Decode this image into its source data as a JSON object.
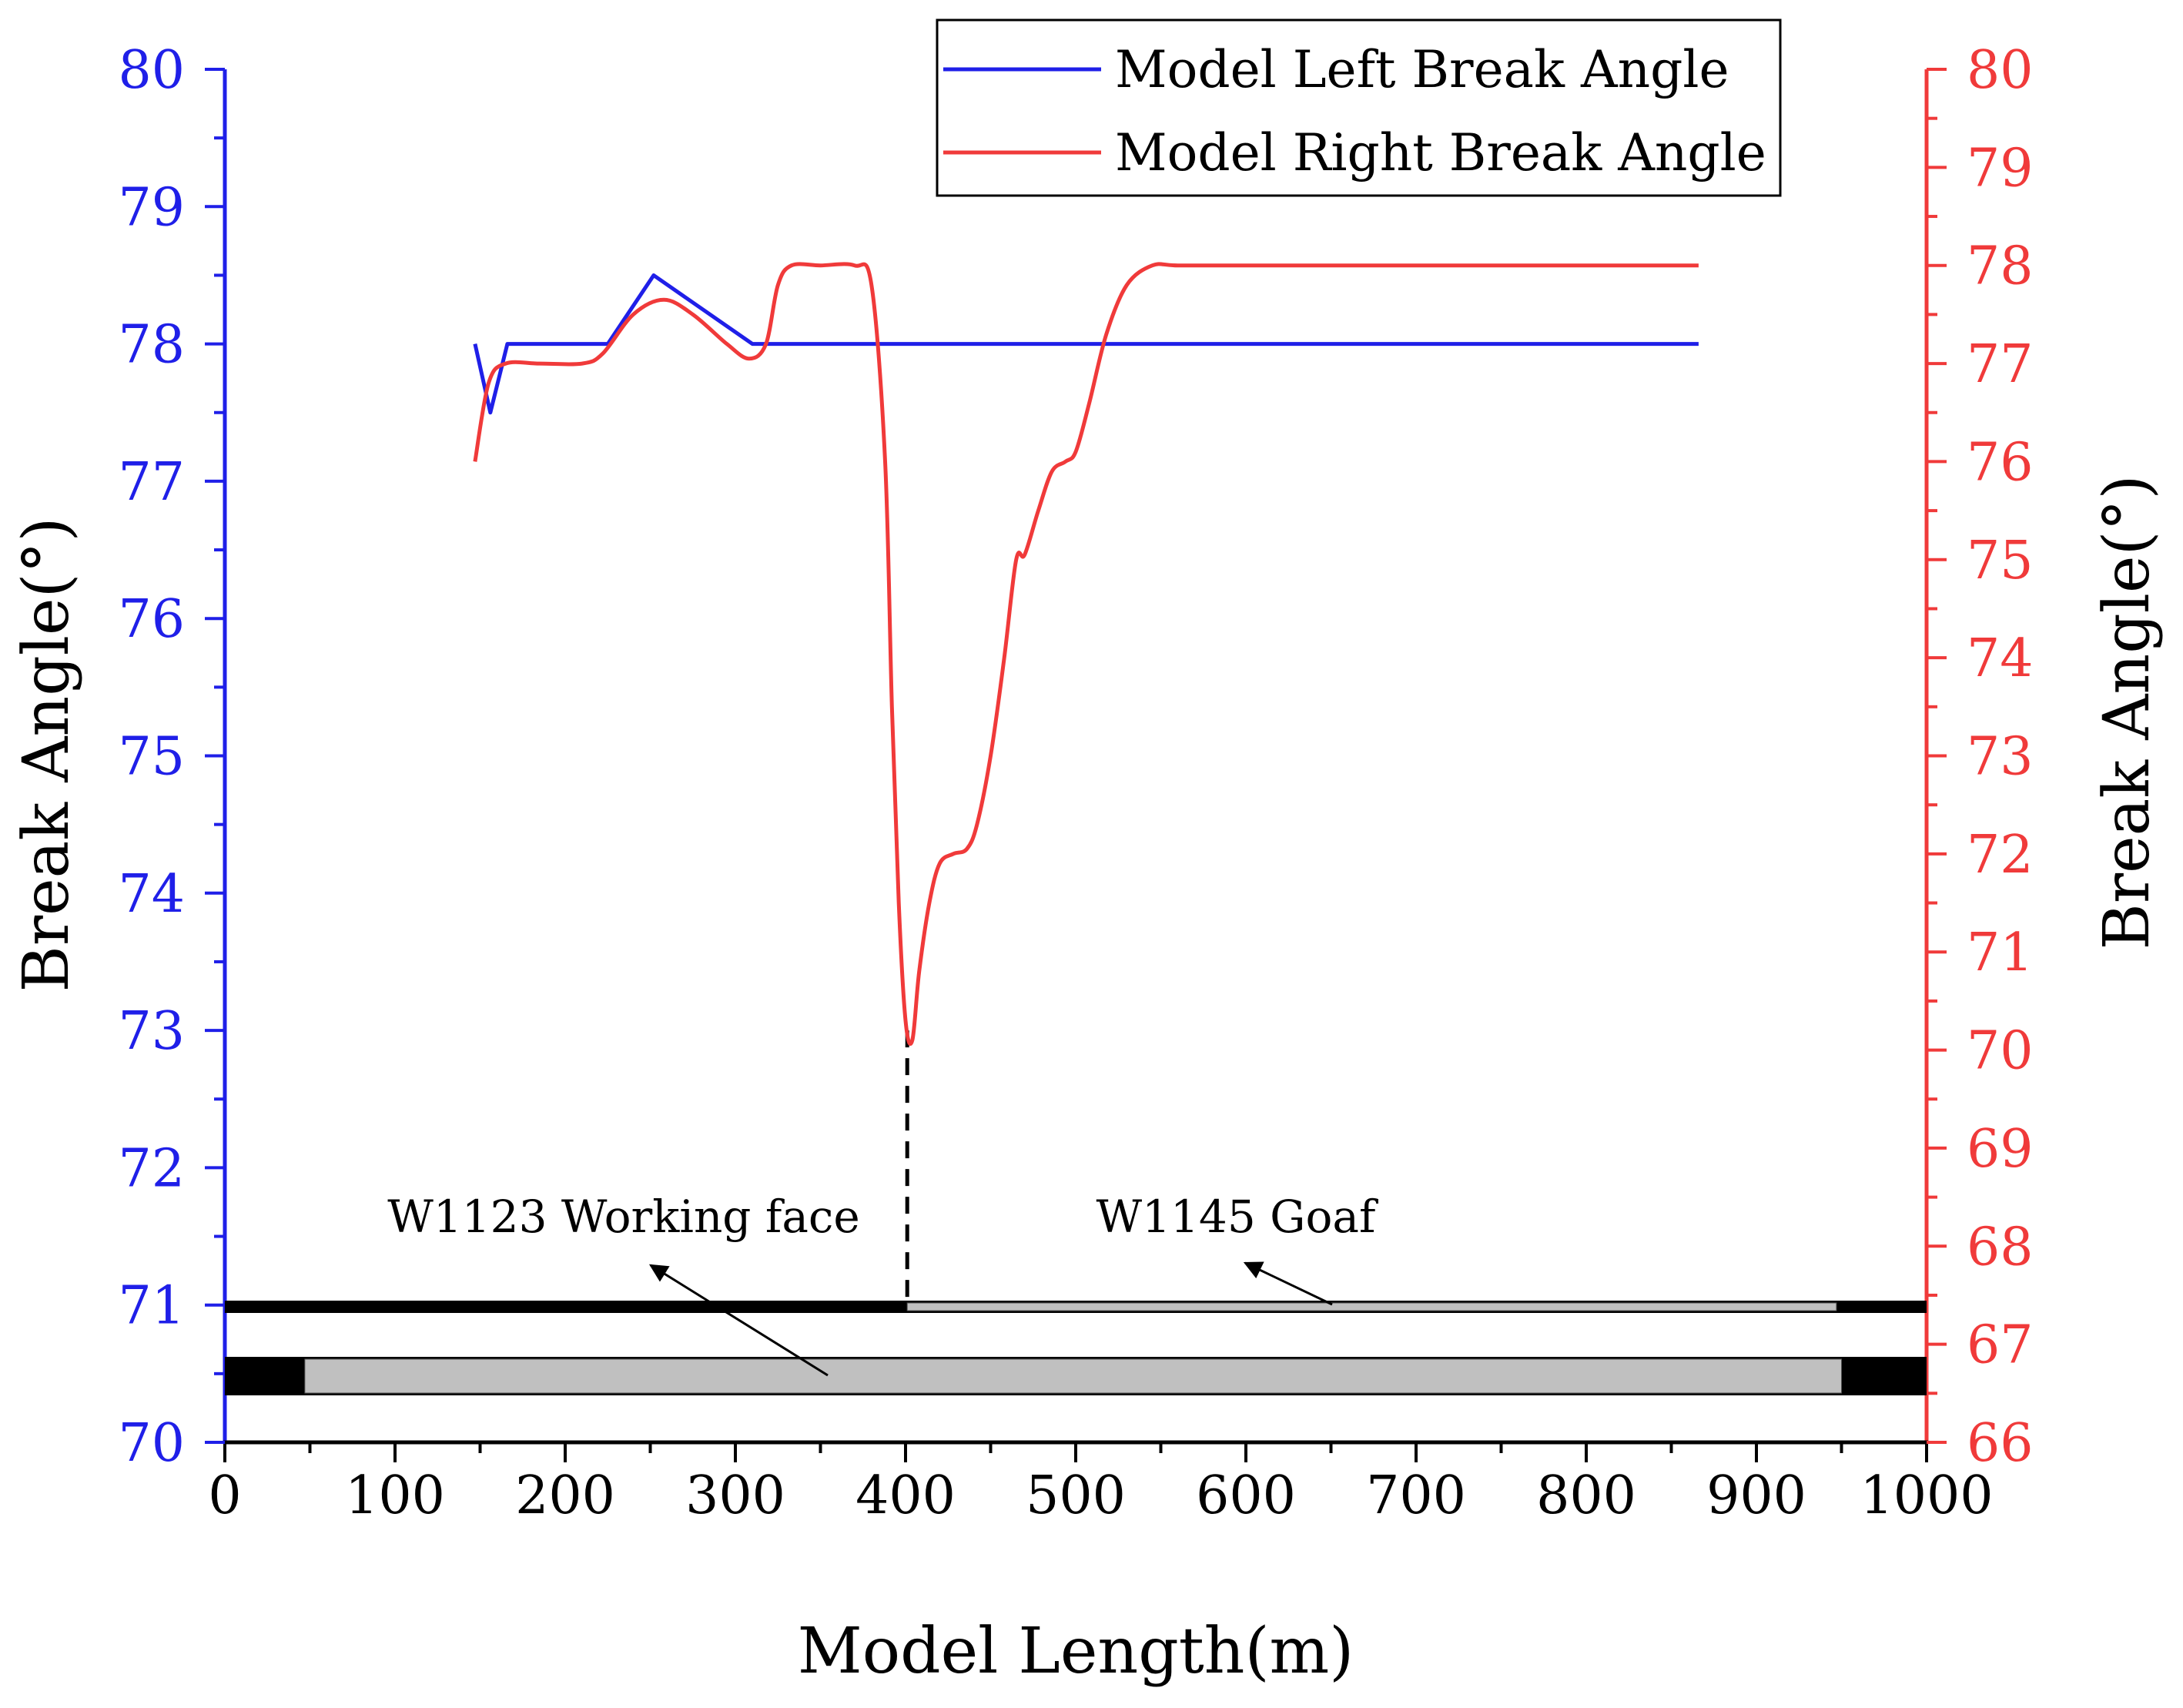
{
  "chart_data": {
    "type": "line",
    "xlabel": "Model Length(m)",
    "ylabel_left": "Break Angle(°)",
    "ylabel_right": "Break Angle(°)",
    "xlim": [
      0,
      1000
    ],
    "ylim_left": [
      70,
      80
    ],
    "ylim_right": [
      66,
      80
    ],
    "x_ticks": [
      "0",
      "100",
      "200",
      "300",
      "400",
      "500",
      "600",
      "700",
      "800",
      "900",
      "1000"
    ],
    "y_left_ticks": [
      "70",
      "71",
      "72",
      "73",
      "74",
      "75",
      "76",
      "77",
      "78",
      "79",
      "80"
    ],
    "y_right_ticks": [
      "66",
      "67",
      "68",
      "69",
      "70",
      "71",
      "72",
      "73",
      "74",
      "75",
      "76",
      "77",
      "78",
      "79",
      "80"
    ],
    "colors": {
      "left": "#1f1fe8",
      "right": "#f03a3a",
      "axis": "#000000",
      "goaf": "#c0c0c0"
    },
    "legend": {
      "position": "top-right",
      "entries": [
        "Model Left Break Angle",
        "Model Right Break Angle"
      ]
    },
    "series": [
      {
        "name": "Model Left Break Angle",
        "axis": "left",
        "x": [
          147,
          156,
          166,
          225,
          252,
          310,
          866
        ],
        "y": [
          78.0,
          77.5,
          78.0,
          78.0,
          78.5,
          78.0,
          78.0
        ]
      },
      {
        "name": "Model Right Break Angle",
        "axis": "right",
        "x": [
          147,
          155,
          165,
          185,
          210,
          222,
          240,
          258,
          275,
          295,
          308,
          318,
          325,
          333,
          350,
          370,
          380,
          388,
          392,
          396,
          400,
          404,
          408,
          414,
          420,
          428,
          436,
          442,
          450,
          458,
          465,
          470,
          478,
          486,
          494,
          500,
          508,
          518,
          530,
          545,
          560,
          600,
          700,
          800,
          866
        ],
        "y": [
          76.0,
          76.8,
          77.0,
          77.0,
          77.0,
          77.1,
          77.5,
          77.65,
          77.5,
          77.2,
          77.05,
          77.2,
          77.8,
          78.0,
          78.0,
          78.0,
          77.8,
          76.0,
          73.5,
          71.5,
          70.3,
          70.1,
          70.8,
          71.5,
          71.9,
          72.0,
          72.05,
          72.3,
          73.0,
          74.0,
          75.0,
          75.05,
          75.5,
          75.9,
          76.0,
          76.1,
          76.6,
          77.3,
          77.8,
          78.0,
          78.0,
          78.0,
          78.0,
          78.0,
          78.0
        ]
      }
    ],
    "annotations": [
      {
        "text": "W1123 Working face"
      },
      {
        "text": "W1145 Goaf"
      }
    ],
    "panel_guide": {
      "x": 401,
      "from_left_value": 73.0,
      "to_left_value": 71.0,
      "style": "dashed"
    }
  }
}
